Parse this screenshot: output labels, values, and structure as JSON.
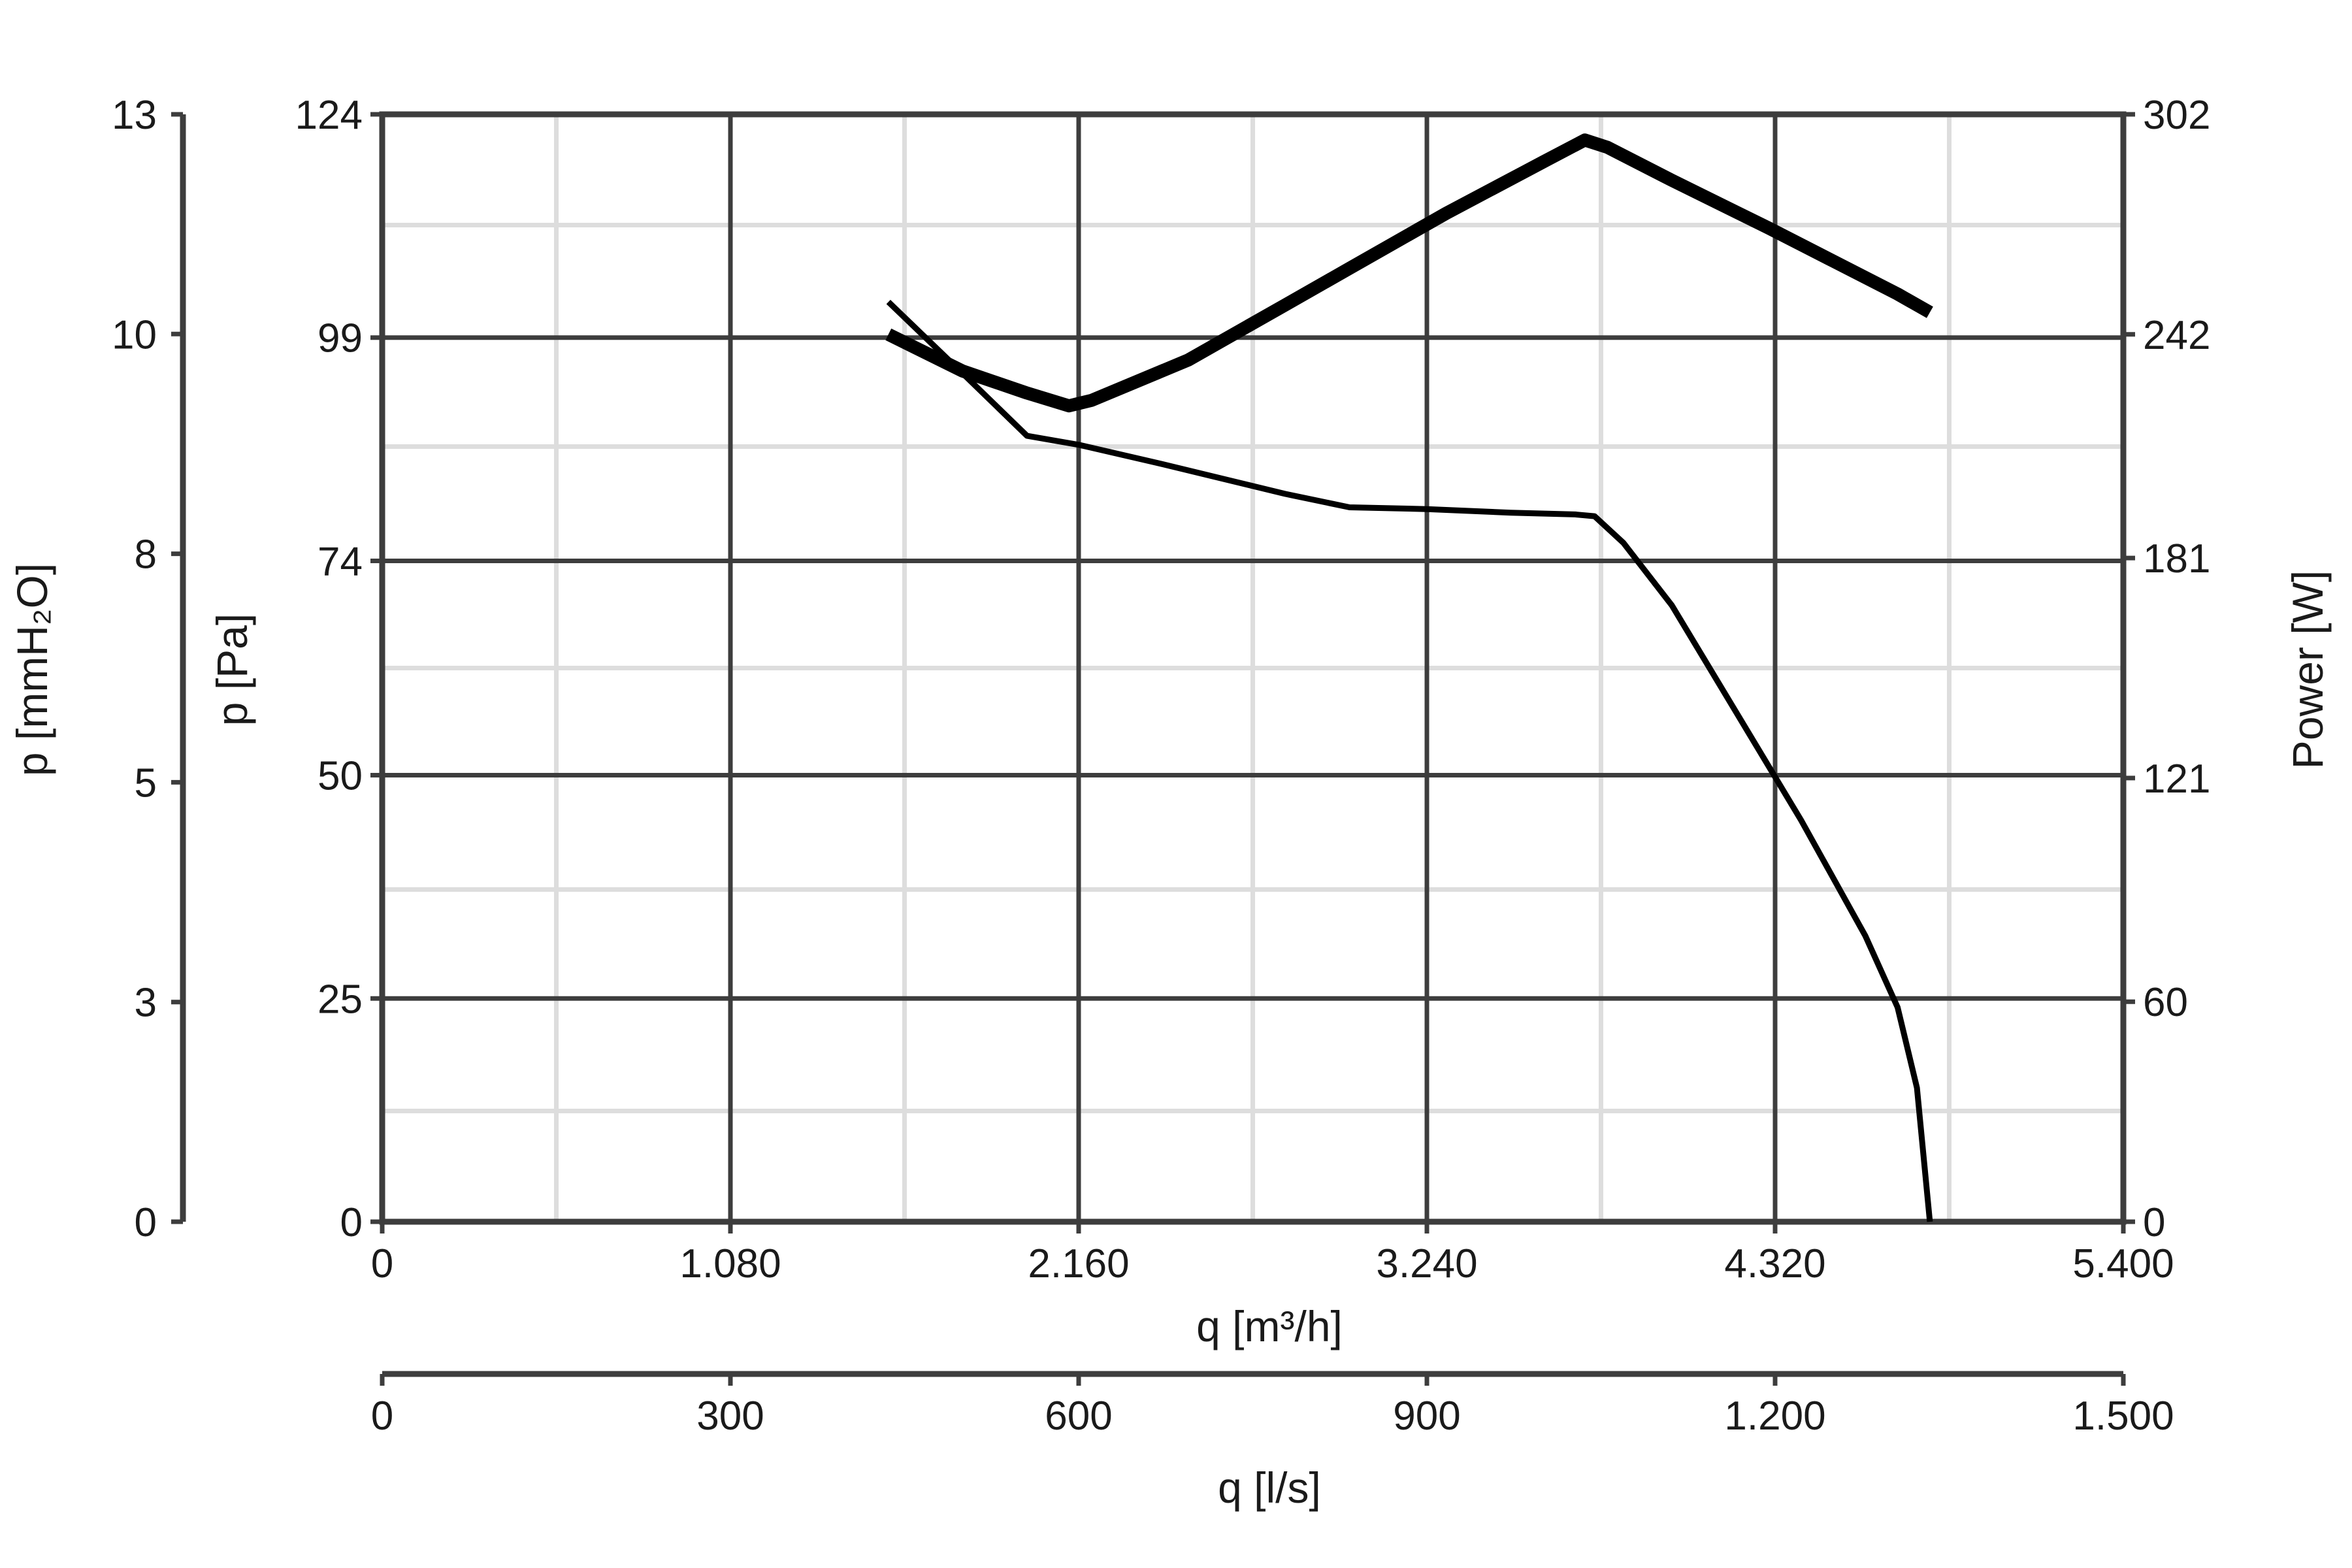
{
  "chart_data": {
    "type": "line",
    "x_axis": {
      "label": "q [m³/h]",
      "range": [
        0,
        5400
      ],
      "ticks": [
        0,
        1080,
        2160,
        3240,
        4320,
        5400
      ],
      "tick_labels": [
        "0",
        "1.080",
        "2.160",
        "3.240",
        "4.320",
        "5.400"
      ]
    },
    "x_axis_secondary": {
      "label": "q [l/s]",
      "range": [
        0,
        1500
      ],
      "ticks": [
        0,
        300,
        600,
        900,
        1200,
        1500
      ],
      "tick_labels": [
        "0",
        "300",
        "600",
        "900",
        "1.200",
        "1.500"
      ]
    },
    "y_axis_left_inner": {
      "label": "p [Pa]",
      "range": [
        0,
        124
      ],
      "ticks": [
        0,
        25,
        50,
        74,
        99,
        124
      ],
      "tick_labels": [
        "0",
        "25",
        "50",
        "74",
        "99",
        "124"
      ]
    },
    "y_axis_left_outer": {
      "label": "p [mmH₂O]",
      "range": [
        0,
        12.6
      ],
      "ticks": [
        0,
        2.5,
        5,
        7.6,
        10.1,
        12.6
      ],
      "tick_labels": [
        "0",
        "3",
        "5",
        "8",
        "10",
        "13"
      ]
    },
    "y_axis_right": {
      "label": "Power [W]",
      "range": [
        0,
        302
      ],
      "ticks": [
        0,
        60,
        121,
        181,
        242,
        302
      ],
      "tick_labels": [
        "0",
        "60",
        "121",
        "181",
        "242",
        "302"
      ]
    },
    "grid": true,
    "series": [
      {
        "axis": "pressure",
        "x": [
          1570,
          1800,
          2000,
          2160,
          2400,
          2800,
          3000,
          3240,
          3500,
          3700,
          3760,
          3850,
          4000,
          4200,
          4400,
          4600,
          4700,
          4760,
          4800
        ],
        "y": [
          103,
          95,
          88,
          87,
          85,
          81.5,
          80,
          79.8,
          79.4,
          79.2,
          79,
          76,
          69,
          57,
          45,
          32,
          24,
          15,
          0
        ]
      },
      {
        "axis": "power",
        "x": [
          1570,
          1800,
          2000,
          2130,
          2200,
          2500,
          2800,
          3000,
          3300,
          3600,
          3730,
          3800,
          4000,
          4300,
          4500,
          4700,
          4800
        ],
        "y": [
          242,
          232,
          226,
          222.5,
          224,
          235,
          250,
          260,
          275,
          289,
          295,
          293,
          284,
          271,
          262,
          253,
          248
        ]
      }
    ]
  }
}
